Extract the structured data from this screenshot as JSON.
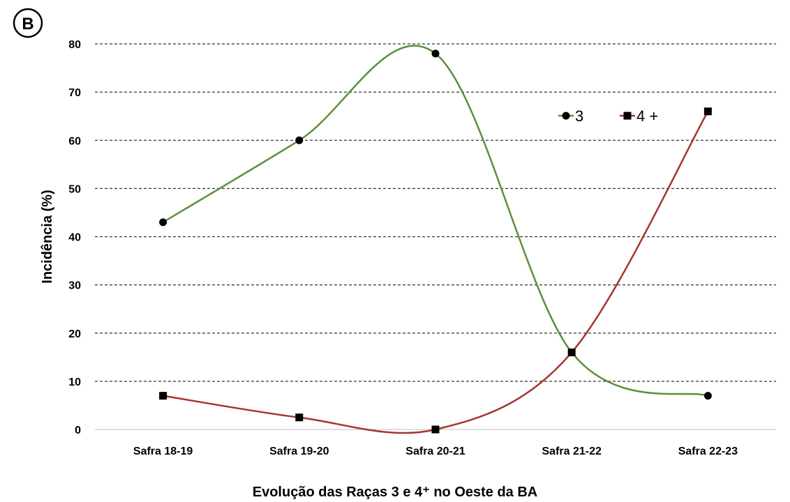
{
  "panel_label": "B",
  "chart_data": {
    "type": "line",
    "title": "",
    "xlabel": "Evolução das Raças  3 e 4⁺ no Oeste da BA",
    "ylabel": "Incidência  (%)",
    "categories": [
      "Safra 18-19",
      "Safra 19-20",
      "Safra 20-21",
      "Safra 21-22",
      "Safra 22-23"
    ],
    "ylim": [
      0,
      80
    ],
    "yticks": [
      0,
      10,
      20,
      30,
      40,
      50,
      60,
      70,
      80
    ],
    "grid": "horizontal-dashed",
    "smooth": true,
    "legend_position": "top-right",
    "series": [
      {
        "name": "3",
        "marker": "circle",
        "color": "#5a8f3c",
        "values": [
          43,
          60,
          78,
          16,
          7
        ]
      },
      {
        "name": "4 +",
        "marker": "square",
        "color": "#a5362b",
        "values": [
          7,
          2.5,
          0,
          16,
          66
        ]
      }
    ]
  }
}
